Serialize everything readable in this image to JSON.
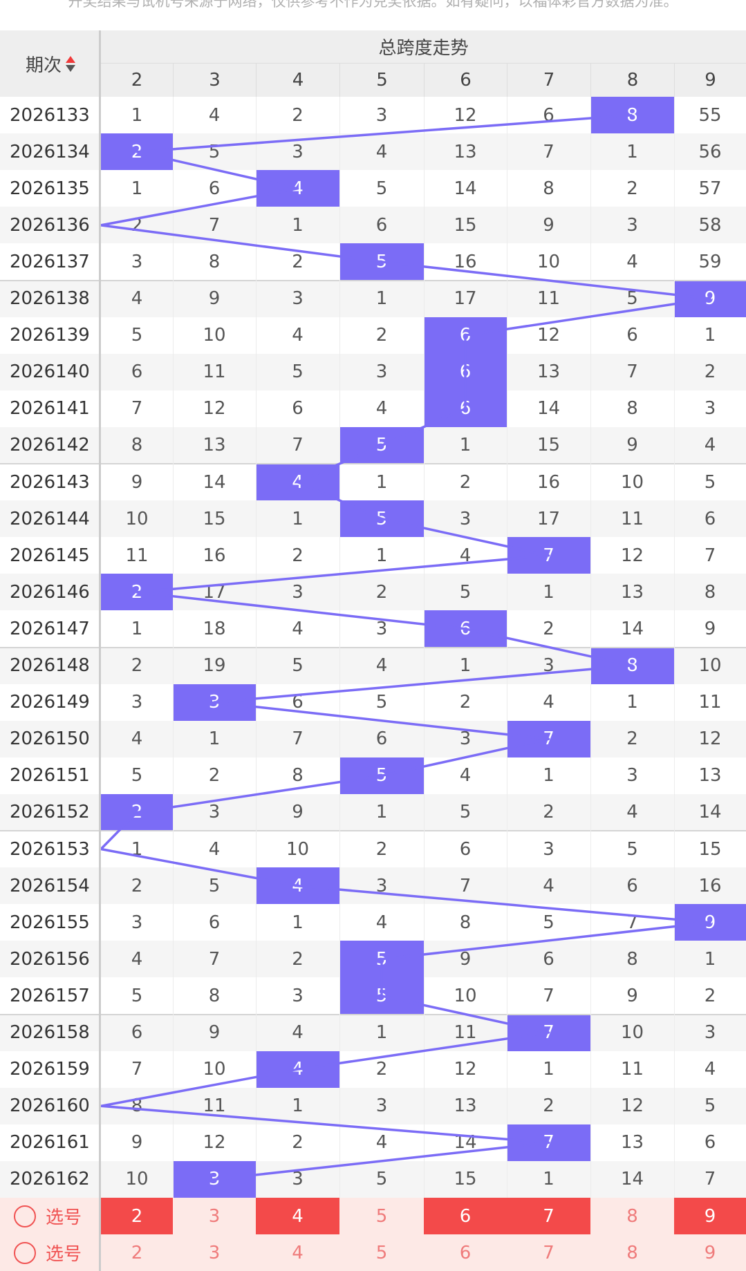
{
  "notice": "开奖结果与试机号来源于网络，仅供参考不作为兑奖依据。如有疑问，以福体彩官方数据为准。",
  "header": {
    "period_label": "期次",
    "group_title": "总跨度走势",
    "columns": [
      "2",
      "3",
      "4",
      "5",
      "6",
      "7",
      "8",
      "9"
    ]
  },
  "rows": [
    {
      "period": "2026133",
      "values": [
        "1",
        "4",
        "2",
        "3",
        "12",
        "6",
        "8",
        "55"
      ],
      "hit": 6
    },
    {
      "period": "2026134",
      "values": [
        "2",
        "5",
        "3",
        "4",
        "13",
        "7",
        "1",
        "56"
      ],
      "hit": 0
    },
    {
      "period": "2026135",
      "values": [
        "1",
        "6",
        "4",
        "5",
        "14",
        "8",
        "2",
        "57"
      ],
      "hit": 2
    },
    {
      "period": "2026136",
      "values": [
        "2",
        "7",
        "1",
        "6",
        "15",
        "9",
        "3",
        "58"
      ],
      "hit": -1
    },
    {
      "period": "2026137",
      "values": [
        "3",
        "8",
        "2",
        "5",
        "16",
        "10",
        "4",
        "59"
      ],
      "hit": 3
    },
    {
      "period": "2026138",
      "values": [
        "4",
        "9",
        "3",
        "1",
        "17",
        "11",
        "5",
        "9"
      ],
      "hit": 7
    },
    {
      "period": "2026139",
      "values": [
        "5",
        "10",
        "4",
        "2",
        "6",
        "12",
        "6",
        "1"
      ],
      "hit": 4
    },
    {
      "period": "2026140",
      "values": [
        "6",
        "11",
        "5",
        "3",
        "6",
        "13",
        "7",
        "2"
      ],
      "hit": 4
    },
    {
      "period": "2026141",
      "values": [
        "7",
        "12",
        "6",
        "4",
        "6",
        "14",
        "8",
        "3"
      ],
      "hit": 4
    },
    {
      "period": "2026142",
      "values": [
        "8",
        "13",
        "7",
        "5",
        "1",
        "15",
        "9",
        "4"
      ],
      "hit": 3
    },
    {
      "period": "2026143",
      "values": [
        "9",
        "14",
        "4",
        "1",
        "2",
        "16",
        "10",
        "5"
      ],
      "hit": 2
    },
    {
      "period": "2026144",
      "values": [
        "10",
        "15",
        "1",
        "5",
        "3",
        "17",
        "11",
        "6"
      ],
      "hit": 3
    },
    {
      "period": "2026145",
      "values": [
        "11",
        "16",
        "2",
        "1",
        "4",
        "7",
        "12",
        "7"
      ],
      "hit": 5
    },
    {
      "period": "2026146",
      "values": [
        "2",
        "17",
        "3",
        "2",
        "5",
        "1",
        "13",
        "8"
      ],
      "hit": 0
    },
    {
      "period": "2026147",
      "values": [
        "1",
        "18",
        "4",
        "3",
        "6",
        "2",
        "14",
        "9"
      ],
      "hit": 4
    },
    {
      "period": "2026148",
      "values": [
        "2",
        "19",
        "5",
        "4",
        "1",
        "3",
        "8",
        "10"
      ],
      "hit": 6
    },
    {
      "period": "2026149",
      "values": [
        "3",
        "3",
        "6",
        "5",
        "2",
        "4",
        "1",
        "11"
      ],
      "hit": 1
    },
    {
      "period": "2026150",
      "values": [
        "4",
        "1",
        "7",
        "6",
        "3",
        "7",
        "2",
        "12"
      ],
      "hit": 5
    },
    {
      "period": "2026151",
      "values": [
        "5",
        "2",
        "8",
        "5",
        "4",
        "1",
        "3",
        "13"
      ],
      "hit": 3
    },
    {
      "period": "2026152",
      "values": [
        "2",
        "3",
        "9",
        "1",
        "5",
        "2",
        "4",
        "14"
      ],
      "hit": 0
    },
    {
      "period": "2026153",
      "values": [
        "1",
        "4",
        "10",
        "2",
        "6",
        "3",
        "5",
        "15"
      ],
      "hit": -1
    },
    {
      "period": "2026154",
      "values": [
        "2",
        "5",
        "4",
        "3",
        "7",
        "4",
        "6",
        "16"
      ],
      "hit": 2
    },
    {
      "period": "2026155",
      "values": [
        "3",
        "6",
        "1",
        "4",
        "8",
        "5",
        "7",
        "9"
      ],
      "hit": 7
    },
    {
      "period": "2026156",
      "values": [
        "4",
        "7",
        "2",
        "5",
        "9",
        "6",
        "8",
        "1"
      ],
      "hit": 3
    },
    {
      "period": "2026157",
      "values": [
        "5",
        "8",
        "3",
        "5",
        "10",
        "7",
        "9",
        "2"
      ],
      "hit": 3
    },
    {
      "period": "2026158",
      "values": [
        "6",
        "9",
        "4",
        "1",
        "11",
        "7",
        "10",
        "3"
      ],
      "hit": 5
    },
    {
      "period": "2026159",
      "values": [
        "7",
        "10",
        "4",
        "2",
        "12",
        "1",
        "11",
        "4"
      ],
      "hit": 2
    },
    {
      "period": "2026160",
      "values": [
        "8",
        "11",
        "1",
        "3",
        "13",
        "2",
        "12",
        "5"
      ],
      "hit": -1
    },
    {
      "period": "2026161",
      "values": [
        "9",
        "12",
        "2",
        "4",
        "14",
        "7",
        "13",
        "6"
      ],
      "hit": 5
    },
    {
      "period": "2026162",
      "values": [
        "10",
        "3",
        "3",
        "5",
        "15",
        "1",
        "14",
        "7"
      ],
      "hit": 1
    }
  ],
  "select_rows": [
    {
      "label": "选号",
      "values": [
        "2",
        "3",
        "4",
        "5",
        "6",
        "7",
        "8",
        "9"
      ],
      "active": [
        true,
        false,
        true,
        false,
        true,
        true,
        false,
        true
      ]
    },
    {
      "label": "选号",
      "values": [
        "2",
        "3",
        "4",
        "5",
        "6",
        "7",
        "8",
        "9"
      ],
      "active": [
        false,
        false,
        false,
        false,
        false,
        false,
        false,
        false
      ]
    }
  ],
  "colors": {
    "hit": "#7b6cf6",
    "trend_line": "#7b6cf6",
    "selected": "#f34a4a",
    "select_row_bg": "#fde9e6",
    "alt_row_bg": "#f5f5f5",
    "header_bg": "#eeeeee"
  },
  "icons": {
    "sort": "sort-arrows-icon",
    "radio": "radio-circle-icon"
  }
}
